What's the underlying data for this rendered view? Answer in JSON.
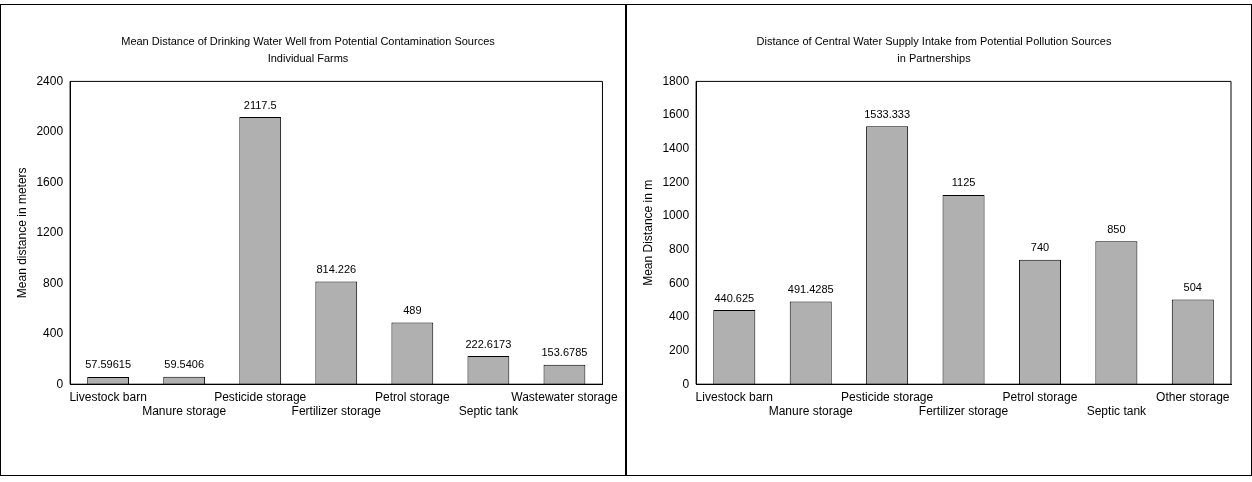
{
  "chart_data": [
    {
      "type": "bar",
      "title": "Mean Distance of Drinking Water Well from Potential Contamination Sources",
      "subtitle": "Individual Farms",
      "ylabel": "Mean distance in meters",
      "categories": [
        "Livestock barn",
        "Manure storage",
        "Pesticide storage",
        "Fertilizer storage",
        "Petrol storage",
        "Septic tank",
        "Wastewater storage"
      ],
      "values": [
        57.59615,
        59.5406,
        2117.5,
        814.226,
        489,
        222.6173,
        153.6785
      ],
      "color": "#b0b0b0",
      "ylim": [
        0,
        2400
      ],
      "yticks": [
        0,
        400,
        800,
        1200,
        1600,
        2000,
        2400
      ],
      "grid": false,
      "legend": false,
      "data_labels": true
    },
    {
      "type": "bar",
      "title": "Distance of Central Water Supply Intake from Potential Pollution Sources",
      "subtitle": "in Partnerships",
      "ylabel": "Mean Distance in m",
      "categories": [
        "Livestock barn",
        "Manure storage",
        "Pesticide storage",
        "Fertilizer storage",
        "Petrol storage",
        "Septic tank",
        "Other storage"
      ],
      "values": [
        440.625,
        491.4285,
        1533.333,
        1125,
        740,
        850,
        504
      ],
      "color": "#b0b0b0",
      "ylim": [
        0,
        1800
      ],
      "yticks": [
        0,
        200,
        400,
        600,
        800,
        1000,
        1200,
        1400,
        1600,
        1800
      ],
      "grid": false,
      "legend": false,
      "data_labels": true
    }
  ]
}
